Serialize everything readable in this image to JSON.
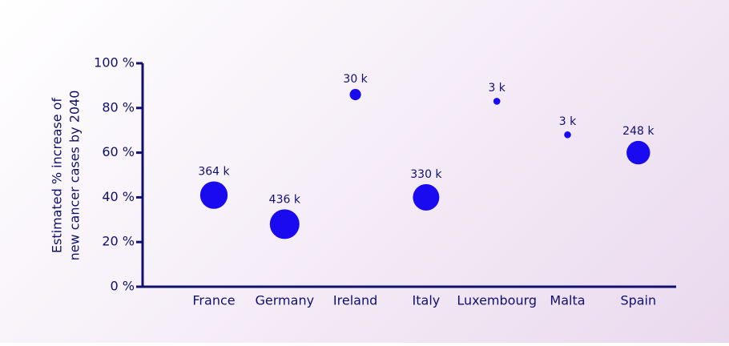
{
  "chart_data": {
    "type": "bubble",
    "y_label": [
      "Estimated % increase of",
      "new cancer cases by 2040"
    ],
    "categories": [
      "France",
      "Germany",
      "Ireland",
      "Italy",
      "Luxembourg",
      "Malta",
      "Spain"
    ],
    "values": [
      41,
      28,
      86,
      40,
      83,
      68,
      60
    ],
    "sizes": [
      364000,
      436000,
      30000,
      330000,
      3000,
      3000,
      248000
    ],
    "value_labels": [
      "364 k",
      "436 k",
      "30 k",
      "330 k",
      "3 k",
      "3 k",
      "248 k"
    ],
    "color": "#1a0af0",
    "ylim": [
      0,
      100
    ],
    "yticks": [
      {
        "value": 0,
        "label": "0 %"
      },
      {
        "value": 20,
        "label": "20 %"
      },
      {
        "value": 40,
        "label": "40 %"
      },
      {
        "value": 60,
        "label": "60 %"
      },
      {
        "value": 80,
        "label": "80 %"
      },
      {
        "value": 100,
        "label": "100 %"
      }
    ],
    "grid": false
  }
}
